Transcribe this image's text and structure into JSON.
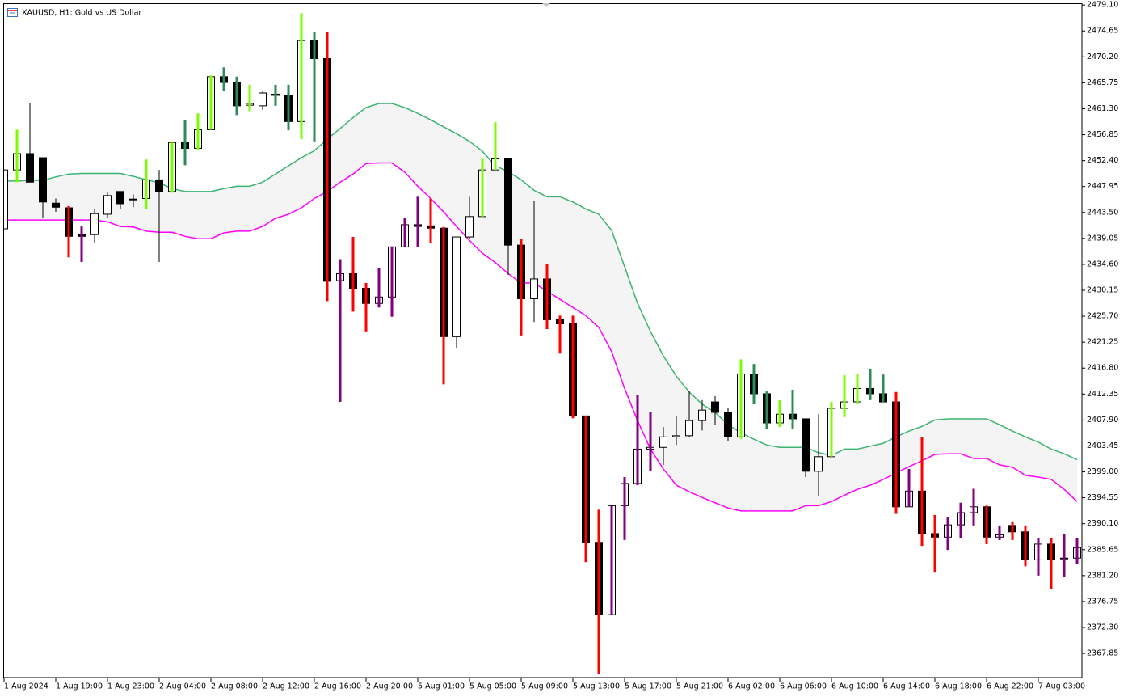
{
  "chart_data": {
    "type": "candlestick",
    "title": "XAUUSD, H1:  Gold vs US Dollar",
    "categories": [
      "1 Aug 2024",
      null,
      null,
      null,
      "1 Aug 19:00",
      null,
      null,
      null,
      "1 Aug 23:00",
      null,
      null,
      null,
      "2 Aug 04:00",
      null,
      null,
      null,
      "2 Aug 08:00",
      null,
      null,
      null,
      "2 Aug 12:00",
      null,
      null,
      null,
      "2 Aug 16:00",
      null,
      null,
      null,
      "2 Aug 20:00",
      null,
      null,
      null,
      "5 Aug 01:00",
      null,
      null,
      null,
      "5 Aug 05:00",
      null,
      null,
      null,
      "5 Aug 09:00",
      null,
      null,
      null,
      "5 Aug 13:00",
      null,
      null,
      null,
      "5 Aug 17:00",
      null,
      null,
      null,
      "5 Aug 21:00",
      null,
      null,
      null,
      "6 Aug 02:00",
      null,
      null,
      null,
      "6 Aug 06:00",
      null,
      null,
      null,
      "6 Aug 10:00",
      null,
      null,
      null,
      "6 Aug 14:00",
      null,
      null,
      null,
      "6 Aug 18:00",
      null,
      null,
      null,
      "6 Aug 22:00",
      null,
      null,
      null,
      "7 Aug 03:00",
      null,
      null,
      null
    ],
    "open": [
      2440.7,
      2450.8,
      2453.6,
      2452.9,
      2445.1,
      2444.3,
      2439.7,
      2439.7,
      2443.2,
      2447.1,
      2445.7,
      2445.9,
      2449.1,
      2447.1,
      2455.5,
      2454.5,
      2457.7,
      2466.8,
      2465.8,
      2461.9,
      2461.8,
      2463.8,
      2463.6,
      2459.1,
      2473.0,
      2469.9,
      2431.8,
      2433.0,
      2430.5,
      2427.9,
      2429.0,
      2437.6,
      2441.4,
      2441.2,
      2440.8,
      2422.2,
      2439.3,
      2442.8,
      2450.8,
      2452.7,
      2437.9,
      2428.7,
      2432.1,
      2425.1,
      2424.4,
      2408.6,
      2386.9,
      2374.5,
      2393.2,
      2397.0,
      2402.9,
      2403.2,
      2405.0,
      2405.2,
      2407.8,
      2411.0,
      2409.2,
      2405.0,
      2415.8,
      2412.4,
      2407.4,
      2408.9,
      2408.1,
      2399.1,
      2401.6,
      2409.9,
      2411.0,
      2413.3,
      2412.4,
      2411.0,
      2393.0,
      2395.7,
      2388.4,
      2387.8,
      2389.9,
      2392.0,
      2393.0,
      2387.8,
      2389.8,
      2388.7,
      2383.9,
      2386.6,
      2384.2,
      2384.2
    ],
    "high": [
      2450.8,
      2457.7,
      2462.3,
      2452.9,
      2445.9,
      2444.6,
      2441.1,
      2444.1,
      2446.9,
      2447.1,
      2446.6,
      2452.6,
      2450.8,
      2455.5,
      2459.4,
      2460.5,
      2467.0,
      2468.4,
      2466.8,
      2465.4,
      2464.4,
      2465.4,
      2465.4,
      2477.7,
      2474.4,
      2474.4,
      2435.5,
      2439.3,
      2431.4,
      2433.9,
      2437.6,
      2442.5,
      2446.2,
      2445.9,
      2441.0,
      2439.3,
      2446.2,
      2452.7,
      2459.0,
      2452.7,
      2438.9,
      2445.5,
      2434.6,
      2425.8,
      2425.8,
      2408.6,
      2392.5,
      2393.2,
      2398.1,
      2412.2,
      2409.2,
      2406.7,
      2408.5,
      2412.9,
      2411.3,
      2412.0,
      2409.9,
      2418.3,
      2417.5,
      2412.8,
      2411.3,
      2413.1,
      2408.1,
      2408.9,
      2411.0,
      2415.6,
      2415.8,
      2416.7,
      2415.7,
      2412.7,
      2399.5,
      2405.0,
      2391.6,
      2391.2,
      2393.7,
      2396.1,
      2393.2,
      2389.8,
      2390.5,
      2389.8,
      2387.7,
      2387.7,
      2388.4,
      2387.7
    ],
    "low": [
      2440.7,
      2448.7,
      2448.7,
      2442.5,
      2443.6,
      2435.8,
      2435.0,
      2438.3,
      2442.5,
      2444.1,
      2444.4,
      2444.1,
      2435.0,
      2446.9,
      2451.6,
      2454.3,
      2457.7,
      2464.4,
      2460.2,
      2460.9,
      2461.1,
      2461.8,
      2457.6,
      2456.1,
      2455.7,
      2428.3,
      2411.0,
      2426.5,
      2423.1,
      2427.2,
      2425.6,
      2437.6,
      2437.6,
      2438.3,
      2414.0,
      2420.3,
      2438.9,
      2442.8,
      2450.8,
      2432.8,
      2422.4,
      2424.7,
      2423.5,
      2419.3,
      2408.2,
      2383.5,
      2364.4,
      2374.5,
      2387.3,
      2396.7,
      2399.2,
      2400.2,
      2403.6,
      2405.0,
      2406.1,
      2407.1,
      2404.3,
      2404.7,
      2410.6,
      2406.4,
      2406.7,
      2406.4,
      2398.1,
      2394.9,
      2401.6,
      2408.4,
      2410.6,
      2411.3,
      2411.0,
      2391.8,
      2393.0,
      2386.3,
      2381.7,
      2385.6,
      2387.7,
      2389.8,
      2386.6,
      2387.3,
      2387.3,
      2382.8,
      2381.2,
      2378.9,
      2381.0,
      2383.2
    ],
    "close": [
      2450.8,
      2453.6,
      2448.7,
      2445.3,
      2444.4,
      2439.4,
      2439.4,
      2443.3,
      2446.4,
      2445.0,
      2445.8,
      2449.1,
      2447.1,
      2455.5,
      2454.5,
      2457.7,
      2466.8,
      2465.8,
      2461.8,
      2462.2,
      2464.0,
      2463.6,
      2459.1,
      2473.0,
      2469.9,
      2431.7,
      2433.0,
      2430.5,
      2427.9,
      2429.0,
      2437.6,
      2441.4,
      2441.1,
      2440.8,
      2422.2,
      2439.3,
      2442.8,
      2450.8,
      2452.7,
      2437.9,
      2428.7,
      2432.1,
      2425.1,
      2424.4,
      2408.6,
      2386.9,
      2374.5,
      2393.2,
      2397.0,
      2402.9,
      2403.2,
      2405.0,
      2405.2,
      2407.8,
      2409.6,
      2409.2,
      2405.0,
      2415.8,
      2412.4,
      2407.4,
      2408.9,
      2408.1,
      2399.1,
      2401.6,
      2409.9,
      2411.0,
      2413.3,
      2412.4,
      2411.0,
      2393.0,
      2395.7,
      2388.4,
      2387.8,
      2389.9,
      2392.0,
      2393.0,
      2387.8,
      2388.2,
      2388.7,
      2383.9,
      2386.6,
      2383.9,
      2384.2,
      2386.0
    ],
    "colors": [
      "#000000",
      "#7cfc00",
      "#000000",
      "#000000",
      "#000000",
      "#ff0000",
      "#800080",
      "#000000",
      "#000000",
      "#000000",
      "#000000",
      "#7cfc00",
      "#000000",
      "#7cfc00",
      "#2e8b57",
      "#7cfc00",
      "#7cfc00",
      "#2e8b57",
      "#2e8b57",
      "#7cfc00",
      "#000000",
      "#2e8b57",
      "#2e8b57",
      "#7cfc00",
      "#2e8b57",
      "#ff0000",
      "#800080",
      "#ff0000",
      "#ff0000",
      "#800080",
      "#800080",
      "#800080",
      "#800080",
      "#ff0000",
      "#ff0000",
      "#000000",
      "#000000",
      "#7cfc00",
      "#7cfc00",
      "#000000",
      "#ff0000",
      "#000000",
      "#ff0000",
      "#ff0000",
      "#ff0000",
      "#ff0000",
      "#ff0000",
      "#800080",
      "#800080",
      "#800080",
      "#800080",
      "#000000",
      "#000000",
      "#000000",
      "#000000",
      "#000000",
      "#000000",
      "#7cfc00",
      "#2e8b57",
      "#2e8b57",
      "#7cfc00",
      "#2e8b57",
      "#000000",
      "#000000",
      "#7cfc00",
      "#7cfc00",
      "#7cfc00",
      "#2e8b57",
      "#2e8b57",
      "#ff0000",
      "#800080",
      "#ff0000",
      "#ff0000",
      "#800080",
      "#800080",
      "#800080",
      "#ff0000",
      "#800080",
      "#ff0000",
      "#ff0000",
      "#800080",
      "#ff0000",
      "#800080",
      "#800080"
    ],
    "wick_color": "#000000",
    "bull_fill": "#ffffff",
    "bear_fill": "#000000",
    "band_fill": "#f4f4f4",
    "series": [
      {
        "color": "#3cb371",
        "values": [
          2448.9,
          2448.9,
          2449.0,
          2449.0,
          2449.6,
          2450.1,
          2450.2,
          2450.2,
          2450.2,
          2450.2,
          2449.7,
          2449.1,
          2448.6,
          2447.6,
          2447.1,
          2447.1,
          2447.1,
          2447.6,
          2448.0,
          2448.0,
          2448.7,
          2450.1,
          2451.5,
          2452.9,
          2454.1,
          2456.1,
          2457.9,
          2459.8,
          2461.5,
          2462.2,
          2462.2,
          2461.5,
          2460.5,
          2459.4,
          2458.2,
          2457.0,
          2455.7,
          2454.0,
          2451.5,
          2450.5,
          2449.1,
          2447.3,
          2446.2,
          2446.2,
          2445.3,
          2444.1,
          2443.2,
          2440.4,
          2434.2,
          2427.9,
          2423.1,
          2418.9,
          2415.4,
          2412.7,
          2410.6,
          2409.2,
          2407.1,
          2405.7,
          2404.6,
          2403.6,
          2403.2,
          2403.2,
          2403.2,
          2402.3,
          2401.8,
          2402.9,
          2402.9,
          2403.4,
          2403.9,
          2405.0,
          2406.0,
          2406.8,
          2407.9,
          2408.1,
          2408.1,
          2408.1,
          2408.1,
          2407.1,
          2406.0,
          2405.0,
          2404.1,
          2402.9,
          2402.1,
          2401.1
        ]
      },
      {
        "color": "#ff00ff",
        "values": [
          2442.2,
          2442.2,
          2442.2,
          2442.2,
          2442.2,
          2442.2,
          2442.2,
          2442.2,
          2441.9,
          2441.1,
          2441.0,
          2440.3,
          2440.1,
          2440.1,
          2439.4,
          2439.0,
          2439.0,
          2440.0,
          2440.3,
          2440.3,
          2441.1,
          2442.5,
          2443.2,
          2444.3,
          2445.9,
          2447.1,
          2448.7,
          2450.1,
          2451.9,
          2452.0,
          2452.0,
          2450.4,
          2448.0,
          2445.9,
          2443.6,
          2441.1,
          2438.7,
          2436.5,
          2434.9,
          2433.0,
          2431.4,
          2431.4,
          2430.0,
          2428.6,
          2427.2,
          2425.8,
          2423.8,
          2419.6,
          2413.3,
          2407.8,
          2402.9,
          2399.5,
          2396.7,
          2395.6,
          2394.6,
          2393.7,
          2392.8,
          2392.3,
          2392.3,
          2392.3,
          2392.3,
          2392.3,
          2393.2,
          2393.2,
          2393.9,
          2395.0,
          2396.0,
          2396.7,
          2397.7,
          2398.8,
          2399.9,
          2400.9,
          2402.0,
          2402.1,
          2402.1,
          2401.3,
          2401.3,
          2400.2,
          2399.8,
          2398.4,
          2398.1,
          2397.7,
          2396.0,
          2393.9
        ]
      }
    ],
    "ylim": [
      2363.7,
      2479.4
    ],
    "yticks": [
      {
        "value": 2479.1,
        "label": "2479.10"
      },
      2474.65,
      {
        "value": 2470.2,
        "label": "2470.20"
      },
      2465.75,
      {
        "value": 2461.3,
        "label": "2461.30"
      },
      2456.85,
      {
        "value": 2452.4,
        "label": "2452.40"
      },
      2447.95,
      {
        "value": 2443.5,
        "label": "2443.50"
      },
      2439.05,
      {
        "value": 2434.6,
        "label": "2434.60"
      },
      2430.15,
      {
        "value": 2425.7,
        "label": "2425.70"
      },
      2421.25,
      {
        "value": 2416.8,
        "label": "2416.80"
      },
      2412.35,
      {
        "value": 2407.9,
        "label": "2407.90"
      },
      2403.45,
      {
        "value": 2399,
        "label": "2399.00"
      },
      2394.55,
      {
        "value": 2390.1,
        "label": "2390.10"
      },
      2385.65,
      {
        "value": 2381.2,
        "label": "2381.20"
      },
      2376.75,
      {
        "value": 2372.3,
        "label": "2372.30"
      },
      2367.85
    ]
  }
}
